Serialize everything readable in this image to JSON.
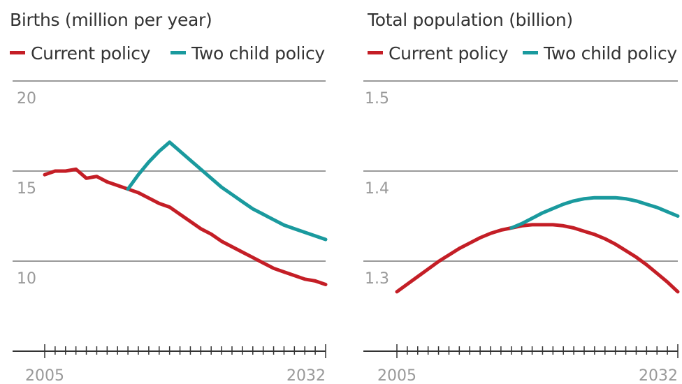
{
  "chart_data": [
    {
      "type": "line",
      "title": "Births (million per year)",
      "x": [
        2005,
        2006,
        2007,
        2008,
        2009,
        2010,
        2011,
        2012,
        2013,
        2014,
        2015,
        2016,
        2017,
        2018,
        2019,
        2020,
        2021,
        2022,
        2023,
        2024,
        2025,
        2026,
        2027,
        2028,
        2029,
        2030,
        2031,
        2032
      ],
      "series": [
        {
          "name": "Current policy",
          "color": "#c41e26",
          "values": [
            14.8,
            15.0,
            15.0,
            15.1,
            14.6,
            14.7,
            14.4,
            14.2,
            14.0,
            13.8,
            13.5,
            13.2,
            13.0,
            12.6,
            12.2,
            11.8,
            11.5,
            11.1,
            10.8,
            10.5,
            10.2,
            9.9,
            9.6,
            9.4,
            9.2,
            9.0,
            8.9,
            8.7
          ]
        },
        {
          "name": "Two child policy",
          "color": "#1a9a9e",
          "values": [
            null,
            null,
            null,
            null,
            null,
            null,
            null,
            null,
            14.0,
            14.8,
            15.5,
            16.1,
            16.6,
            16.1,
            15.6,
            15.1,
            14.6,
            14.1,
            13.7,
            13.3,
            12.9,
            12.6,
            12.3,
            12.0,
            11.8,
            11.6,
            11.4,
            11.2
          ]
        }
      ],
      "ylim": [
        5,
        20
      ],
      "yticks": [
        "20",
        "15",
        "10"
      ],
      "ytick_values": [
        20,
        15,
        10
      ],
      "xticks": [
        "2005",
        "2032"
      ],
      "xtick_values": [
        2005,
        2032
      ],
      "grid": true,
      "legend": "top"
    },
    {
      "type": "line",
      "title": "Total population (billion)",
      "x": [
        2005,
        2006,
        2007,
        2008,
        2009,
        2010,
        2011,
        2012,
        2013,
        2014,
        2015,
        2016,
        2017,
        2018,
        2019,
        2020,
        2021,
        2022,
        2023,
        2024,
        2025,
        2026,
        2027,
        2028,
        2029,
        2030,
        2031,
        2032
      ],
      "series": [
        {
          "name": "Current policy",
          "color": "#c41e26",
          "values": [
            1.305,
            1.312,
            1.319,
            1.326,
            1.333,
            1.339,
            1.345,
            1.35,
            1.355,
            1.359,
            1.362,
            1.364,
            1.366,
            1.367,
            1.367,
            1.367,
            1.366,
            1.364,
            1.361,
            1.358,
            1.354,
            1.349,
            1.343,
            1.337,
            1.33,
            1.322,
            1.314,
            1.305
          ]
        },
        {
          "name": "Two child policy",
          "color": "#1a9a9e",
          "values": [
            null,
            null,
            null,
            null,
            null,
            null,
            null,
            null,
            null,
            null,
            null,
            1.364,
            1.368,
            1.373,
            1.378,
            1.382,
            1.386,
            1.389,
            1.391,
            1.392,
            1.392,
            1.392,
            1.391,
            1.389,
            1.386,
            1.383,
            1.379,
            1.375
          ]
        }
      ],
      "ylim": [
        1.25,
        1.5
      ],
      "yticks": [
        "1.5",
        "1.4",
        "1.3"
      ],
      "ytick_values": [
        1.5,
        1.4,
        1.3
      ],
      "xticks": [
        "2005",
        "2032"
      ],
      "xtick_values": [
        2005,
        2032
      ],
      "grid": true,
      "legend": "top"
    }
  ]
}
